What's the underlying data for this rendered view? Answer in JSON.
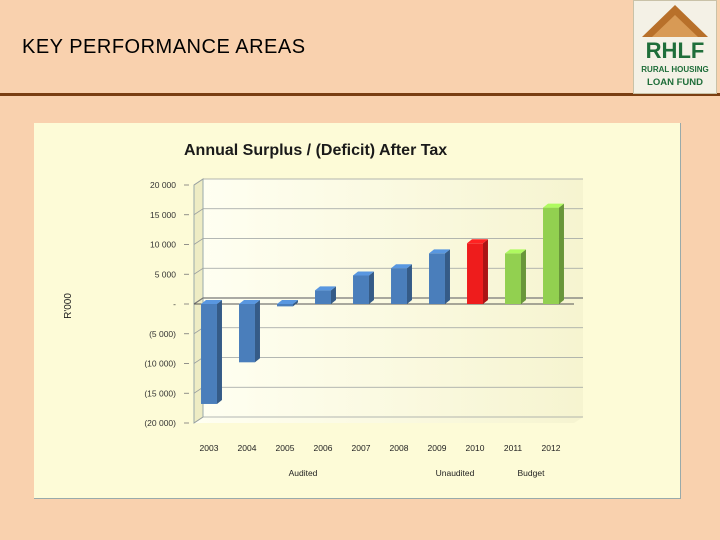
{
  "slide": {
    "title": "KEY PERFORMANCE AREAS"
  },
  "logo": {
    "abbr": "RHLF",
    "line1": "RURAL HOUSING",
    "line2": "LOAN FUND"
  },
  "colors": {
    "background": "#f9d1ae",
    "audited": "#4a7ebb",
    "unaudited": "#ee1c1c",
    "budget": "#92d050",
    "logo_green": "#1f6e3a",
    "logo_roof": "#b8702a"
  },
  "chart_data": {
    "type": "bar",
    "title": "Annual Surplus / (Deficit) After Tax",
    "xlabel": "",
    "ylabel": "R'000",
    "ylim": [
      -20000,
      20000
    ],
    "yticks": [
      20000,
      15000,
      10000,
      5000,
      0,
      -5000,
      -10000,
      -15000,
      -20000
    ],
    "ytick_labels": [
      "20 000",
      "15 000",
      "10 000",
      "5 000",
      "-",
      "(5 000)",
      "(10 000)",
      "(15 000)",
      "(20 000)"
    ],
    "grid": true,
    "categories": [
      "2003",
      "2004",
      "2005",
      "2006",
      "2007",
      "2008",
      "2009",
      "2010",
      "2011",
      "2012"
    ],
    "values": [
      -16800,
      -9800,
      -400,
      2300,
      4800,
      6000,
      8500,
      10200,
      8500,
      16200
    ],
    "groups": [
      "audited",
      "audited",
      "audited",
      "audited",
      "audited",
      "audited",
      "audited",
      "unaudited",
      "budget",
      "budget"
    ],
    "group_labels": [
      {
        "key": "audited",
        "label": "Audited",
        "under": "2005"
      },
      {
        "key": "unaudited",
        "label": "Unaudited",
        "under": "2009"
      },
      {
        "key": "budget",
        "label": "Budget",
        "under": "2011"
      }
    ]
  }
}
